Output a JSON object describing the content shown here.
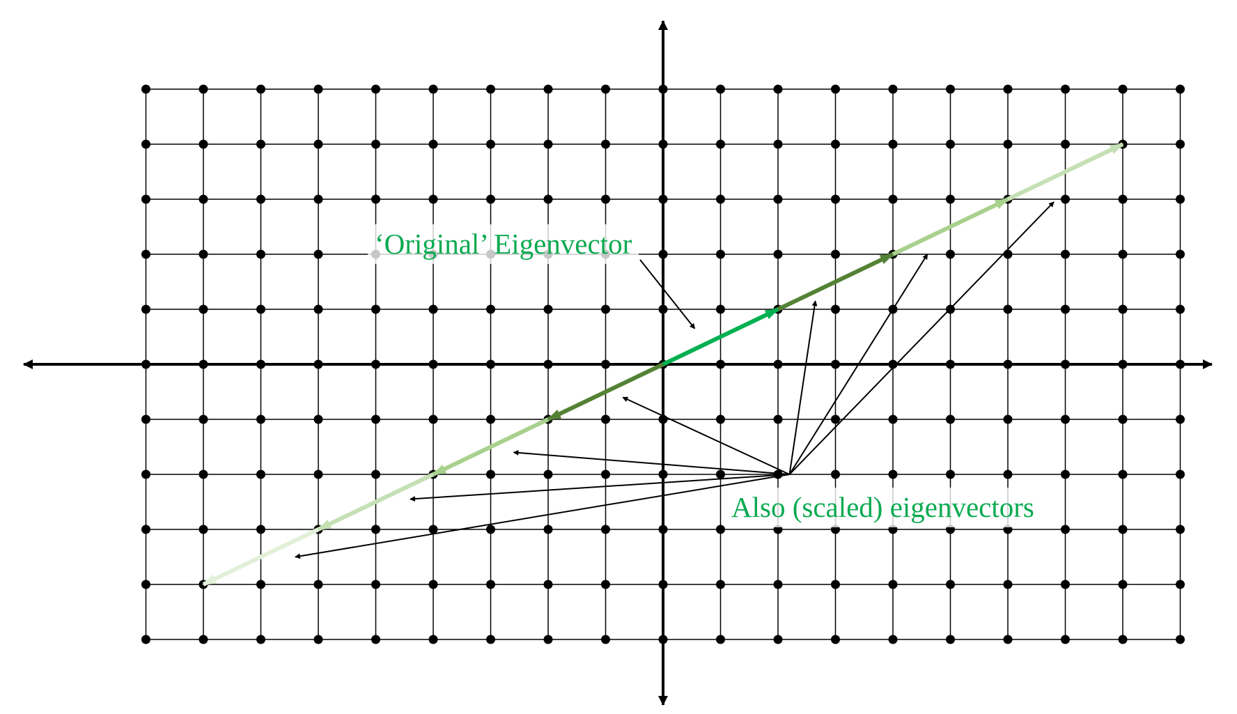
{
  "colors": {
    "grid": "#000000",
    "dot": "#000000",
    "axis": "#000000",
    "label_text": "#0aaa50",
    "eigen_main": "#00b050",
    "eigen_dark": "#548235",
    "eigen_mid": "#a9d18e",
    "eigen_light": "#c5e0b4",
    "eigen_faint": "#e2f0d9"
  },
  "labels": {
    "original_eigenvector": "‘Original’ Eigenvector",
    "scaled_eigenvectors": "Also (scaled) eigenvectors"
  },
  "grid": {
    "x_min": -9,
    "x_max": 9,
    "y_min": -5,
    "y_max": 5
  },
  "eigenvectors": [
    {
      "name": "original",
      "from": [
        0,
        0
      ],
      "to": [
        2,
        1
      ],
      "color": "eigen_main",
      "width": 6
    },
    {
      "name": "scaled-2",
      "from": [
        2,
        1
      ],
      "to": [
        4,
        2
      ],
      "color": "eigen_dark",
      "width": 6
    },
    {
      "name": "scaled-3",
      "from": [
        4,
        2
      ],
      "to": [
        6,
        3
      ],
      "color": "eigen_mid",
      "width": 6
    },
    {
      "name": "scaled-4",
      "from": [
        6,
        3
      ],
      "to": [
        8,
        4
      ],
      "color": "eigen_light",
      "width": 6
    },
    {
      "name": "scaled-neg-2",
      "from": [
        0,
        0
      ],
      "to": [
        -2,
        -1
      ],
      "color": "eigen_dark",
      "width": 6
    },
    {
      "name": "scaled-neg-3",
      "from": [
        -2,
        -1
      ],
      "to": [
        -4,
        -2
      ],
      "color": "eigen_mid",
      "width": 6
    },
    {
      "name": "scaled-neg-4",
      "from": [
        -4,
        -2
      ],
      "to": [
        -6,
        -3
      ],
      "color": "eigen_light",
      "width": 6
    },
    {
      "name": "scaled-neg-5",
      "from": [
        -6,
        -3
      ],
      "to": [
        -8,
        -4
      ],
      "color": "eigen_faint",
      "width": 6
    }
  ],
  "pointers": [
    {
      "name": "pointer-original",
      "from": [
        -0.4,
        1.9
      ],
      "to": [
        0.55,
        0.65
      ]
    },
    {
      "name": "pointer-to-neg-1",
      "from": [
        2.2,
        -2
      ],
      "to": [
        -0.7,
        -0.6
      ]
    },
    {
      "name": "pointer-to-neg-2",
      "from": [
        2.2,
        -2
      ],
      "to": [
        -2.6,
        -1.6
      ]
    },
    {
      "name": "pointer-to-neg-3",
      "from": [
        2.2,
        -2
      ],
      "to": [
        -4.4,
        -2.45
      ]
    },
    {
      "name": "pointer-to-neg-4",
      "from": [
        2.2,
        -2
      ],
      "to": [
        -6.4,
        -3.5
      ]
    },
    {
      "name": "pointer-to-pos-1",
      "from": [
        2.2,
        -2
      ],
      "to": [
        2.65,
        1.15
      ]
    },
    {
      "name": "pointer-to-pos-2",
      "from": [
        2.2,
        -2
      ],
      "to": [
        4.6,
        2.0
      ]
    },
    {
      "name": "pointer-to-pos-3",
      "from": [
        2.2,
        -2
      ],
      "to": [
        6.8,
        2.95
      ]
    }
  ]
}
